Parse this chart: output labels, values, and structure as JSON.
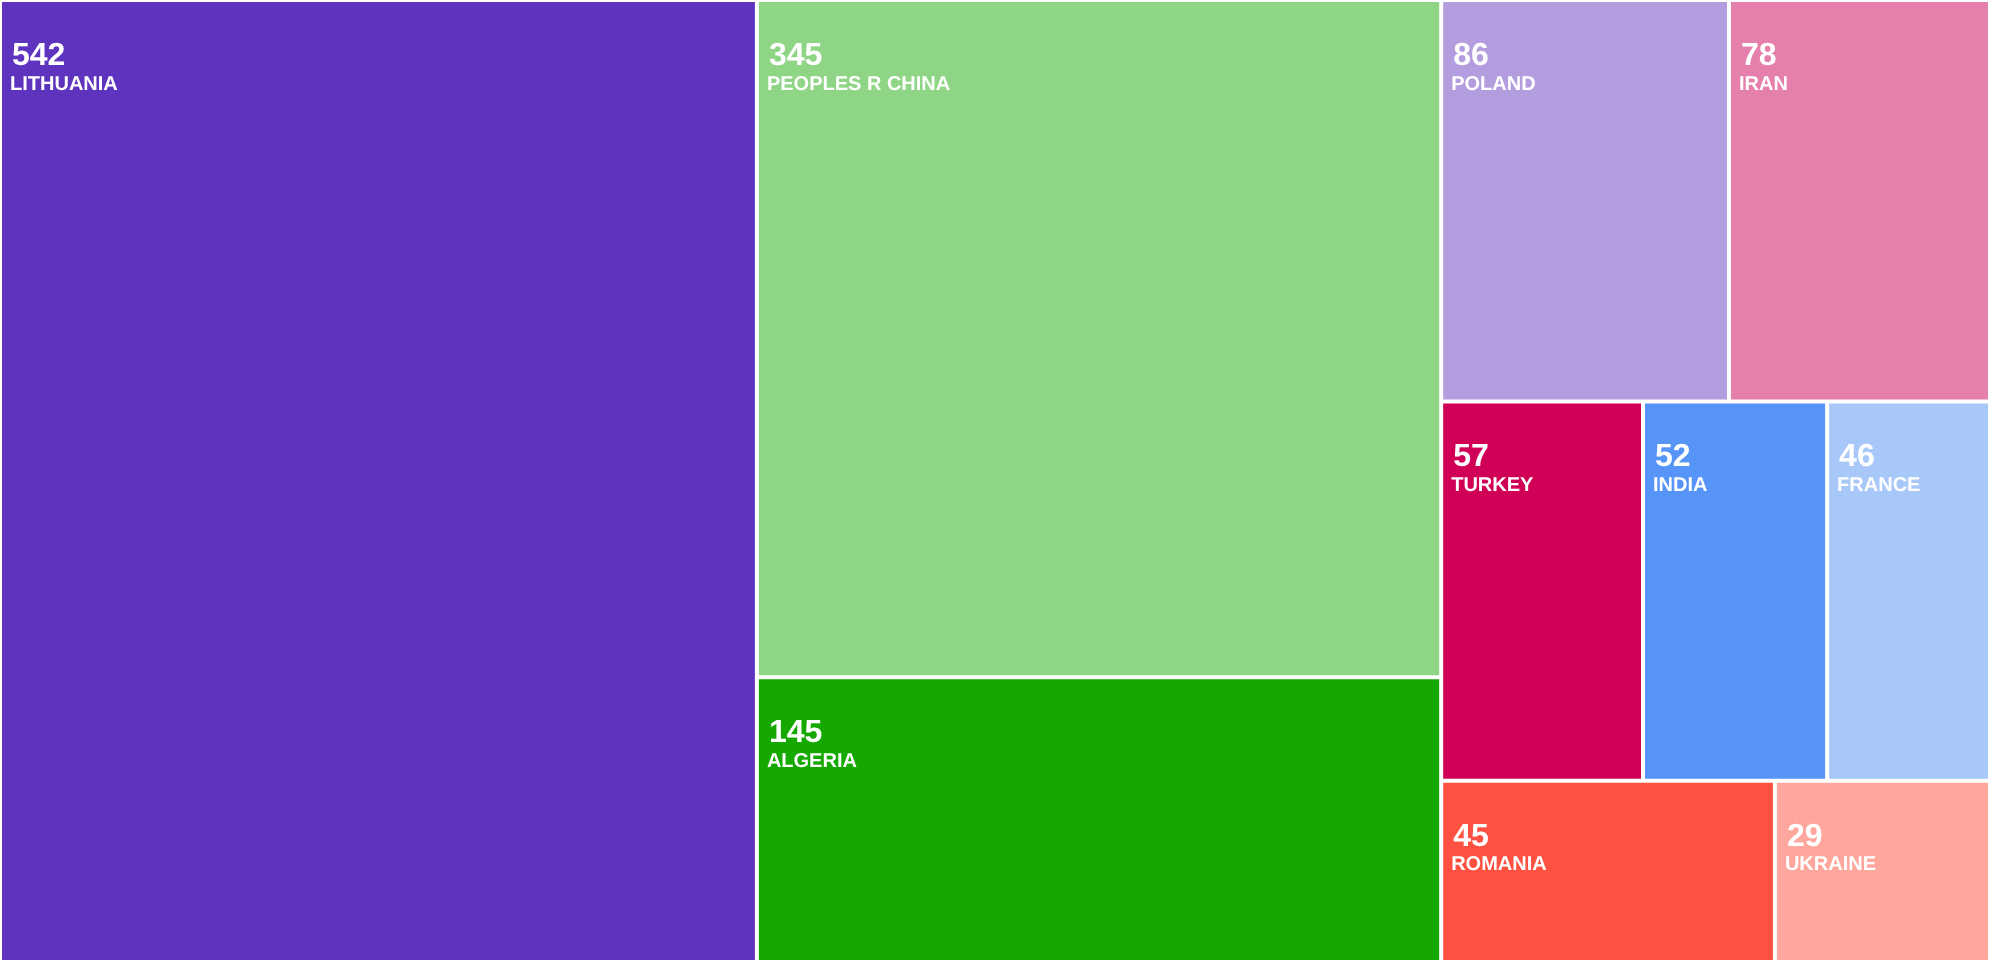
{
  "chart_data": {
    "type": "other",
    "data_labels": true,
    "categories": [
      "LITHUANIA",
      "PEOPLES R CHINA",
      "ALGERIA",
      "POLAND",
      "IRAN",
      "TURKEY",
      "INDIA",
      "FRANCE",
      "ROMANIA",
      "UKRAINE"
    ],
    "values": [
      542,
      345,
      145,
      86,
      78,
      57,
      52,
      46,
      45,
      29
    ],
    "colors": [
      "#5e33be",
      "#8ed685",
      "#14a800",
      "#b39ddf",
      "#e57fab",
      "#d00057",
      "#5794f7",
      "#a9c8fa",
      "#ff5142",
      "#ffa79c"
    ]
  }
}
